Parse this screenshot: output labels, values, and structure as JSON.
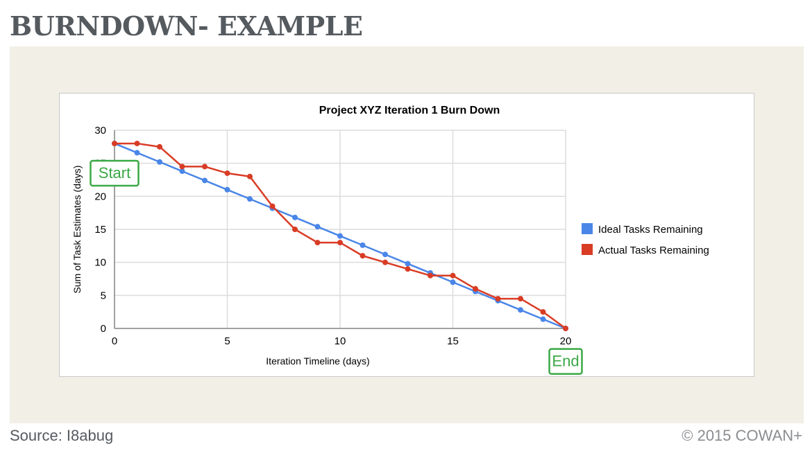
{
  "slide": {
    "title": "BURNDOWN- EXAMPLE",
    "source": "Source: I8abug",
    "copyright": "© 2015 COWAN+"
  },
  "chart_data": {
    "type": "line",
    "title": "Project XYZ Iteration 1 Burn Down",
    "xlabel": "Iteration Timeline (days)",
    "ylabel": "Sum of Task Estimates (days)",
    "xlim": [
      0,
      20
    ],
    "ylim": [
      0,
      30
    ],
    "xticks": [
      0,
      5,
      10,
      15,
      20
    ],
    "yticks": [
      0,
      5,
      10,
      15,
      20,
      25,
      30
    ],
    "grid": true,
    "legend_position": "right",
    "x": [
      0,
      1,
      2,
      3,
      4,
      5,
      6,
      7,
      8,
      9,
      10,
      11,
      12,
      13,
      14,
      15,
      16,
      17,
      18,
      19,
      20
    ],
    "series": [
      {
        "name": "Ideal Tasks Remaining",
        "color": "#4a86e8",
        "values": [
          28,
          26.6,
          25.2,
          23.8,
          22.4,
          21,
          19.6,
          18.2,
          16.8,
          15.4,
          14,
          12.6,
          11.2,
          9.8,
          8.4,
          7,
          5.6,
          4.2,
          2.8,
          1.4,
          0
        ]
      },
      {
        "name": "Actual Tasks Remaining",
        "color": "#d93c25",
        "values": [
          28,
          28,
          27.5,
          24.5,
          24.5,
          23.5,
          23,
          18.5,
          15,
          13,
          13,
          11,
          10,
          9,
          8,
          8,
          6,
          4.5,
          4.5,
          2.5,
          0
        ]
      }
    ],
    "annotations": [
      {
        "text": "Start",
        "x": 0,
        "y": 23.5,
        "color": "#3aa845"
      },
      {
        "text": "End",
        "x": 20,
        "y": -5,
        "color": "#3aa845"
      }
    ]
  }
}
